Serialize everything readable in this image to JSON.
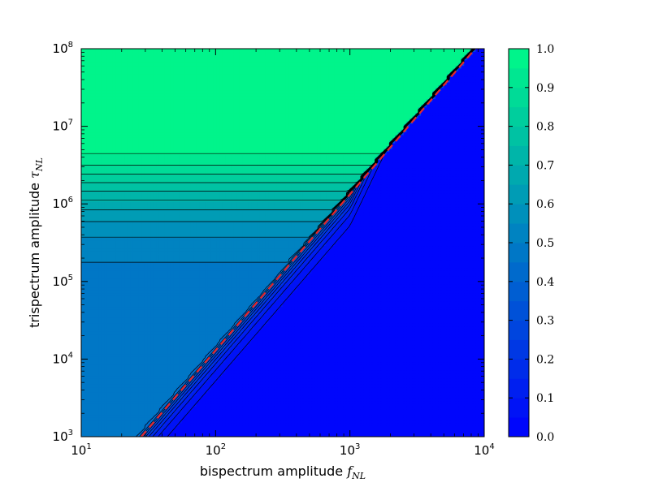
{
  "chart_data": {
    "type": "heatmap",
    "subtype": "filled-contour",
    "xlabel": "bispectrum amplitude",
    "xlabel_symbol": "f",
    "xlabel_subscript": "NL",
    "ylabel": "trispectrum amplitude",
    "ylabel_symbol": "τ",
    "ylabel_subscript": "NL",
    "xscale": "log",
    "yscale": "log",
    "xlim": [
      10,
      10000
    ],
    "ylim": [
      1000,
      100000000
    ],
    "x_ticks": [
      {
        "base": "10",
        "exp": "1"
      },
      {
        "base": "10",
        "exp": "2"
      },
      {
        "base": "10",
        "exp": "3"
      },
      {
        "base": "10",
        "exp": "4"
      }
    ],
    "y_ticks": [
      {
        "base": "10",
        "exp": "3"
      },
      {
        "base": "10",
        "exp": "4"
      },
      {
        "base": "10",
        "exp": "5"
      },
      {
        "base": "10",
        "exp": "6"
      },
      {
        "base": "10",
        "exp": "7"
      },
      {
        "base": "10",
        "exp": "8"
      }
    ],
    "colorbar": {
      "range": [
        0.0,
        1.0
      ],
      "levels": 20,
      "color_low": "#0000ff",
      "color_high": "#00fa88",
      "tick_labels": [
        "0.0",
        "0.1",
        "0.2",
        "0.3",
        "0.4",
        "0.5",
        "0.6",
        "0.7",
        "0.8",
        "0.9",
        "1.0"
      ]
    },
    "annotations": {
      "dashed_line": {
        "color": "#e8262b",
        "style": "dashed",
        "relation": "tau_NL = (36/25) * f_NL^2",
        "points": [
          [
            28,
            1000
          ],
          [
            9000,
            110000000
          ]
        ]
      },
      "contour_line_color": "#000000",
      "region_upper_left_value": 1.0,
      "region_lower_right_value": 0.0
    }
  }
}
